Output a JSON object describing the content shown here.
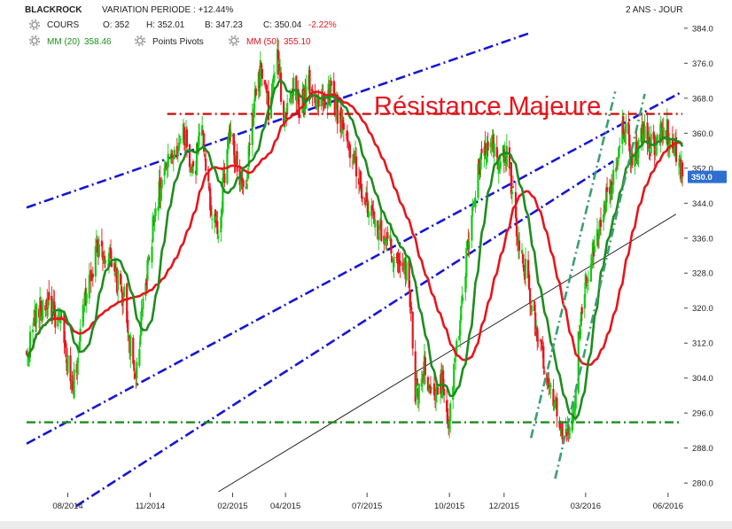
{
  "header": {
    "symbol": "BLACKROCK",
    "variation": "VARIATION PERIODE : +12.44%",
    "period": "2 ANS - JOUR",
    "cours_label": "COURS",
    "open": "O: 352",
    "high": "H: 352.01",
    "low": "B: 347.23",
    "close": "C: 350.04",
    "change": "-2.22%",
    "mm20_label": "MM (20)",
    "mm20_value": "358.46",
    "pivots_label": "Points Pivots",
    "mm50_label": "MM (50)",
    "mm50_value": "355.10"
  },
  "price_tag": "350.0",
  "annotation": "Résistance Majeure",
  "colors": {
    "candle_up": "#14c914",
    "candle_down": "#e8141b",
    "mm20": "#1e8c1e",
    "mm50": "#e8141b",
    "channel": "#1515d4",
    "resistance": "#c81414",
    "support": "#1e8c1e",
    "trend_up": "#3d9e72",
    "long_trend": "#111111",
    "price_tag_bg": "#2e6fd0"
  },
  "chart_data": {
    "type": "candlestick",
    "y_axis_position": "right",
    "ylim": [
      278,
      386
    ],
    "yticks": [
      280.0,
      288.0,
      296.0,
      304.0,
      312.0,
      320.0,
      328.0,
      336.0,
      344.0,
      352.0,
      360.0,
      368.0,
      376.0,
      384.0
    ],
    "xlim": [
      "2014-06-16",
      "2016-06-17"
    ],
    "xticks": [
      {
        "label": "08/2014",
        "date": "2014-08-01"
      },
      {
        "label": "11/2014",
        "date": "2014-11-01"
      },
      {
        "label": "02/2015",
        "date": "2015-02-01"
      },
      {
        "label": "04/2015",
        "date": "2015-04-01"
      },
      {
        "label": "07/2015",
        "date": "2015-07-01"
      },
      {
        "label": "10/2015",
        "date": "2015-10-01"
      },
      {
        "label": "12/2015",
        "date": "2015-12-01"
      },
      {
        "label": "03/2016",
        "date": "2016-03-01"
      },
      {
        "label": "06/2016",
        "date": "2016-06-01"
      }
    ],
    "grid": false,
    "price_anchors": [
      [
        "2014-06-16",
        308
      ],
      [
        "2014-06-25",
        318
      ],
      [
        "2014-07-10",
        322
      ],
      [
        "2014-07-25",
        315
      ],
      [
        "2014-08-06",
        300
      ],
      [
        "2014-08-22",
        325
      ],
      [
        "2014-09-05",
        335
      ],
      [
        "2014-09-20",
        329
      ],
      [
        "2014-10-03",
        322
      ],
      [
        "2014-10-15",
        303
      ],
      [
        "2014-10-25",
        322
      ],
      [
        "2014-11-08",
        345
      ],
      [
        "2014-11-25",
        355
      ],
      [
        "2014-12-10",
        360
      ],
      [
        "2014-12-19",
        350
      ],
      [
        "2014-12-29",
        362
      ],
      [
        "2015-01-06",
        345
      ],
      [
        "2015-01-16",
        338
      ],
      [
        "2015-01-28",
        360
      ],
      [
        "2015-02-06",
        352
      ],
      [
        "2015-02-15",
        345
      ],
      [
        "2015-02-25",
        368
      ],
      [
        "2015-03-05",
        375
      ],
      [
        "2015-03-13",
        365
      ],
      [
        "2015-03-23",
        377
      ],
      [
        "2015-03-31",
        362
      ],
      [
        "2015-04-09",
        371
      ],
      [
        "2015-04-17",
        365
      ],
      [
        "2015-04-27",
        372
      ],
      [
        "2015-05-09",
        366
      ],
      [
        "2015-05-21",
        370
      ],
      [
        "2015-06-03",
        362
      ],
      [
        "2015-06-15",
        355
      ],
      [
        "2015-06-26",
        346
      ],
      [
        "2015-07-08",
        340
      ],
      [
        "2015-07-18",
        337
      ],
      [
        "2015-07-30",
        333
      ],
      [
        "2015-08-12",
        330
      ],
      [
        "2015-08-19",
        322
      ],
      [
        "2015-08-24",
        300
      ],
      [
        "2015-09-03",
        307
      ],
      [
        "2015-09-13",
        298
      ],
      [
        "2015-09-23",
        304
      ],
      [
        "2015-09-30",
        294
      ],
      [
        "2015-10-10",
        312
      ],
      [
        "2015-10-22",
        335
      ],
      [
        "2015-11-03",
        352
      ],
      [
        "2015-11-16",
        358
      ],
      [
        "2015-11-24",
        352
      ],
      [
        "2015-12-05",
        356
      ],
      [
        "2015-12-16",
        336
      ],
      [
        "2015-12-28",
        326
      ],
      [
        "2016-01-09",
        312
      ],
      [
        "2016-01-19",
        302
      ],
      [
        "2016-01-29",
        296
      ],
      [
        "2016-02-09",
        290
      ],
      [
        "2016-02-16",
        293
      ],
      [
        "2016-02-24",
        318
      ],
      [
        "2016-03-07",
        332
      ],
      [
        "2016-03-19",
        342
      ],
      [
        "2016-03-31",
        350
      ],
      [
        "2016-04-12",
        362
      ],
      [
        "2016-04-22",
        354
      ],
      [
        "2016-05-04",
        360
      ],
      [
        "2016-05-16",
        356
      ],
      [
        "2016-05-27",
        362
      ],
      [
        "2016-06-10",
        356
      ],
      [
        "2016-06-17",
        350
      ]
    ],
    "series": [
      {
        "name": "MM (20)",
        "type": "line",
        "last_value": 358.46
      },
      {
        "name": "MM (50)",
        "type": "line",
        "last_value": 355.1
      }
    ],
    "overlays": [
      {
        "role": "resistance",
        "style": "dash-dot",
        "points": [
          [
            "2014-11-20",
            364.4
          ],
          [
            "2016-06-17",
            364.4
          ]
        ]
      },
      {
        "role": "support",
        "style": "dash-dot",
        "points": [
          [
            "2014-06-16",
            293.9
          ],
          [
            "2016-06-17",
            293.9
          ]
        ]
      },
      {
        "role": "channel-upper",
        "style": "dash-dot",
        "points": [
          [
            "2014-06-16",
            343.0
          ],
          [
            "2015-12-31",
            383.0
          ]
        ]
      },
      {
        "role": "channel-middle",
        "style": "dash-dot",
        "points": [
          [
            "2014-06-16",
            289.0
          ],
          [
            "2016-06-17",
            369.5
          ]
        ]
      },
      {
        "role": "channel-lower",
        "style": "dash-dot",
        "points": [
          [
            "2014-08-10",
            274.7
          ],
          [
            "2016-04-01",
            353.6
          ]
        ]
      },
      {
        "role": "uptrend-1",
        "style": "dash-dot",
        "points": [
          [
            "2015-12-31",
            290.3
          ],
          [
            "2016-04-03",
            369.5
          ]
        ]
      },
      {
        "role": "uptrend-2",
        "style": "dash-dot",
        "points": [
          [
            "2016-01-27",
            281.0
          ],
          [
            "2016-05-06",
            369.0
          ]
        ]
      },
      {
        "role": "long-trend",
        "style": "solid",
        "points": [
          [
            "2015-01-16",
            278.0
          ],
          [
            "2016-06-10",
            341.5
          ]
        ]
      }
    ]
  }
}
